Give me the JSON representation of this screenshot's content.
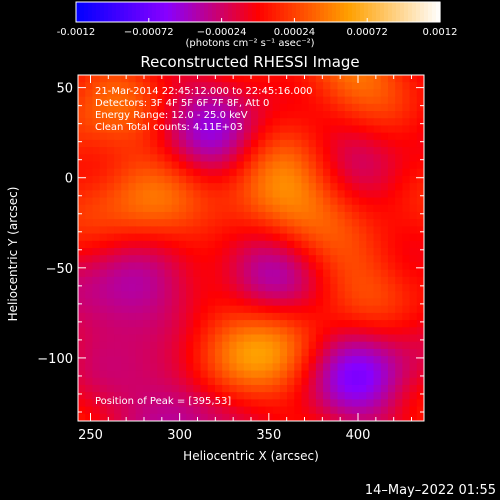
{
  "chart_data": {
    "type": "heatmap",
    "title": "Reconstructed RHESSI Image",
    "xlabel": "Heliocentric X (arcsec)",
    "ylabel": "Heliocentric Y (arcsec)",
    "xlim": [
      243,
      437
    ],
    "ylim": [
      -135,
      57
    ],
    "xticks": [
      250,
      300,
      350,
      400
    ],
    "yticks": [
      50,
      0,
      -50,
      -100
    ],
    "colorbar": {
      "range": [
        -0.0012,
        0.0012
      ],
      "ticks": [
        "-0.0012",
        "−0.00072",
        "−0.00024",
        "0.00024",
        "0.00072",
        "0.0012"
      ],
      "unit_label": "(photons cm⁻² s⁻¹ asec⁻²)",
      "colors": [
        "#0000ff",
        "#8800ff",
        "#ff0000",
        "#ffa000",
        "#ffffff"
      ]
    },
    "annotations": [
      "21-Mar-2014 22:45:12.000 to 22:45:16.000",
      "Detectors: 3F 4F 5F 6F 7F 8F, Att 0",
      "Energy Range: 12.0 - 25.0 keV",
      "Clean     Total counts: 4.11E+03"
    ],
    "peak_label": "Position of Peak = [395,53]",
    "sources": [
      {
        "x": 345,
        "y": -10,
        "amp": 0.00048
      },
      {
        "x": 365,
        "y": -15,
        "amp": 0.0003
      },
      {
        "x": 325,
        "y": -100,
        "amp": 0.00055
      },
      {
        "x": 360,
        "y": -80,
        "amp": 0.0005
      },
      {
        "x": 280,
        "y": -15,
        "amp": 0.00045
      },
      {
        "x": 395,
        "y": 53,
        "amp": 0.0006
      },
      {
        "x": 405,
        "y": -60,
        "amp": 0.0003
      },
      {
        "x": 255,
        "y": 40,
        "amp": 0.0003
      },
      {
        "x": 350,
        "y": -55,
        "amp": -0.00075
      },
      {
        "x": 320,
        "y": 20,
        "amp": -0.0005
      },
      {
        "x": 270,
        "y": -65,
        "amp": -0.0005
      },
      {
        "x": 300,
        "y": -125,
        "amp": -0.00055
      },
      {
        "x": 400,
        "y": -105,
        "amp": -0.0006
      },
      {
        "x": 395,
        "y": 30,
        "amp": -0.00035
      }
    ]
  },
  "footer": "14–May–2022 01:55"
}
